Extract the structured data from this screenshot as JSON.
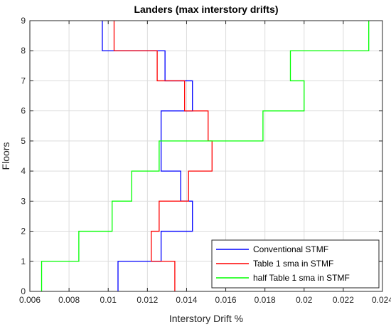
{
  "chart_data": {
    "type": "line",
    "title": "Landers (max interstory drifts)",
    "xlabel": "Interstory Drift %",
    "ylabel": "Floors",
    "xlim": [
      0.006,
      0.024
    ],
    "ylim": [
      0,
      9
    ],
    "xticks": [
      0.006,
      0.008,
      0.01,
      0.012,
      0.014,
      0.016,
      0.018,
      0.02,
      0.022,
      0.024
    ],
    "xtick_labels": [
      "0.006",
      "0.008",
      "0.01",
      "0.012",
      "0.014",
      "0.016",
      "0.018",
      "0.02",
      "0.022",
      "0.024"
    ],
    "yticks": [
      0,
      1,
      2,
      3,
      4,
      5,
      6,
      7,
      8,
      9
    ],
    "ytick_labels": [
      "0",
      "1",
      "2",
      "3",
      "4",
      "5",
      "6",
      "7",
      "8",
      "9"
    ],
    "grid": true,
    "legend_position": "bottom-right",
    "series": [
      {
        "name": "Conventional STMF",
        "color": "#0000ff",
        "story_drifts": [
          0.0105,
          0.0127,
          0.0143,
          0.0137,
          0.0127,
          0.0127,
          0.0143,
          0.0129,
          0.0097
        ]
      },
      {
        "name": "Table 1 sma in STMF",
        "color": "#ff0000",
        "story_drifts": [
          0.0134,
          0.0122,
          0.0126,
          0.0141,
          0.0153,
          0.0151,
          0.0139,
          0.0125,
          0.0103
        ]
      },
      {
        "name": "half Table 1 sma in STMF",
        "color": "#00ff00",
        "story_drifts": [
          0.0066,
          0.0085,
          0.0102,
          0.0112,
          0.0126,
          0.0179,
          0.02,
          0.0193,
          0.0233
        ]
      }
    ]
  }
}
